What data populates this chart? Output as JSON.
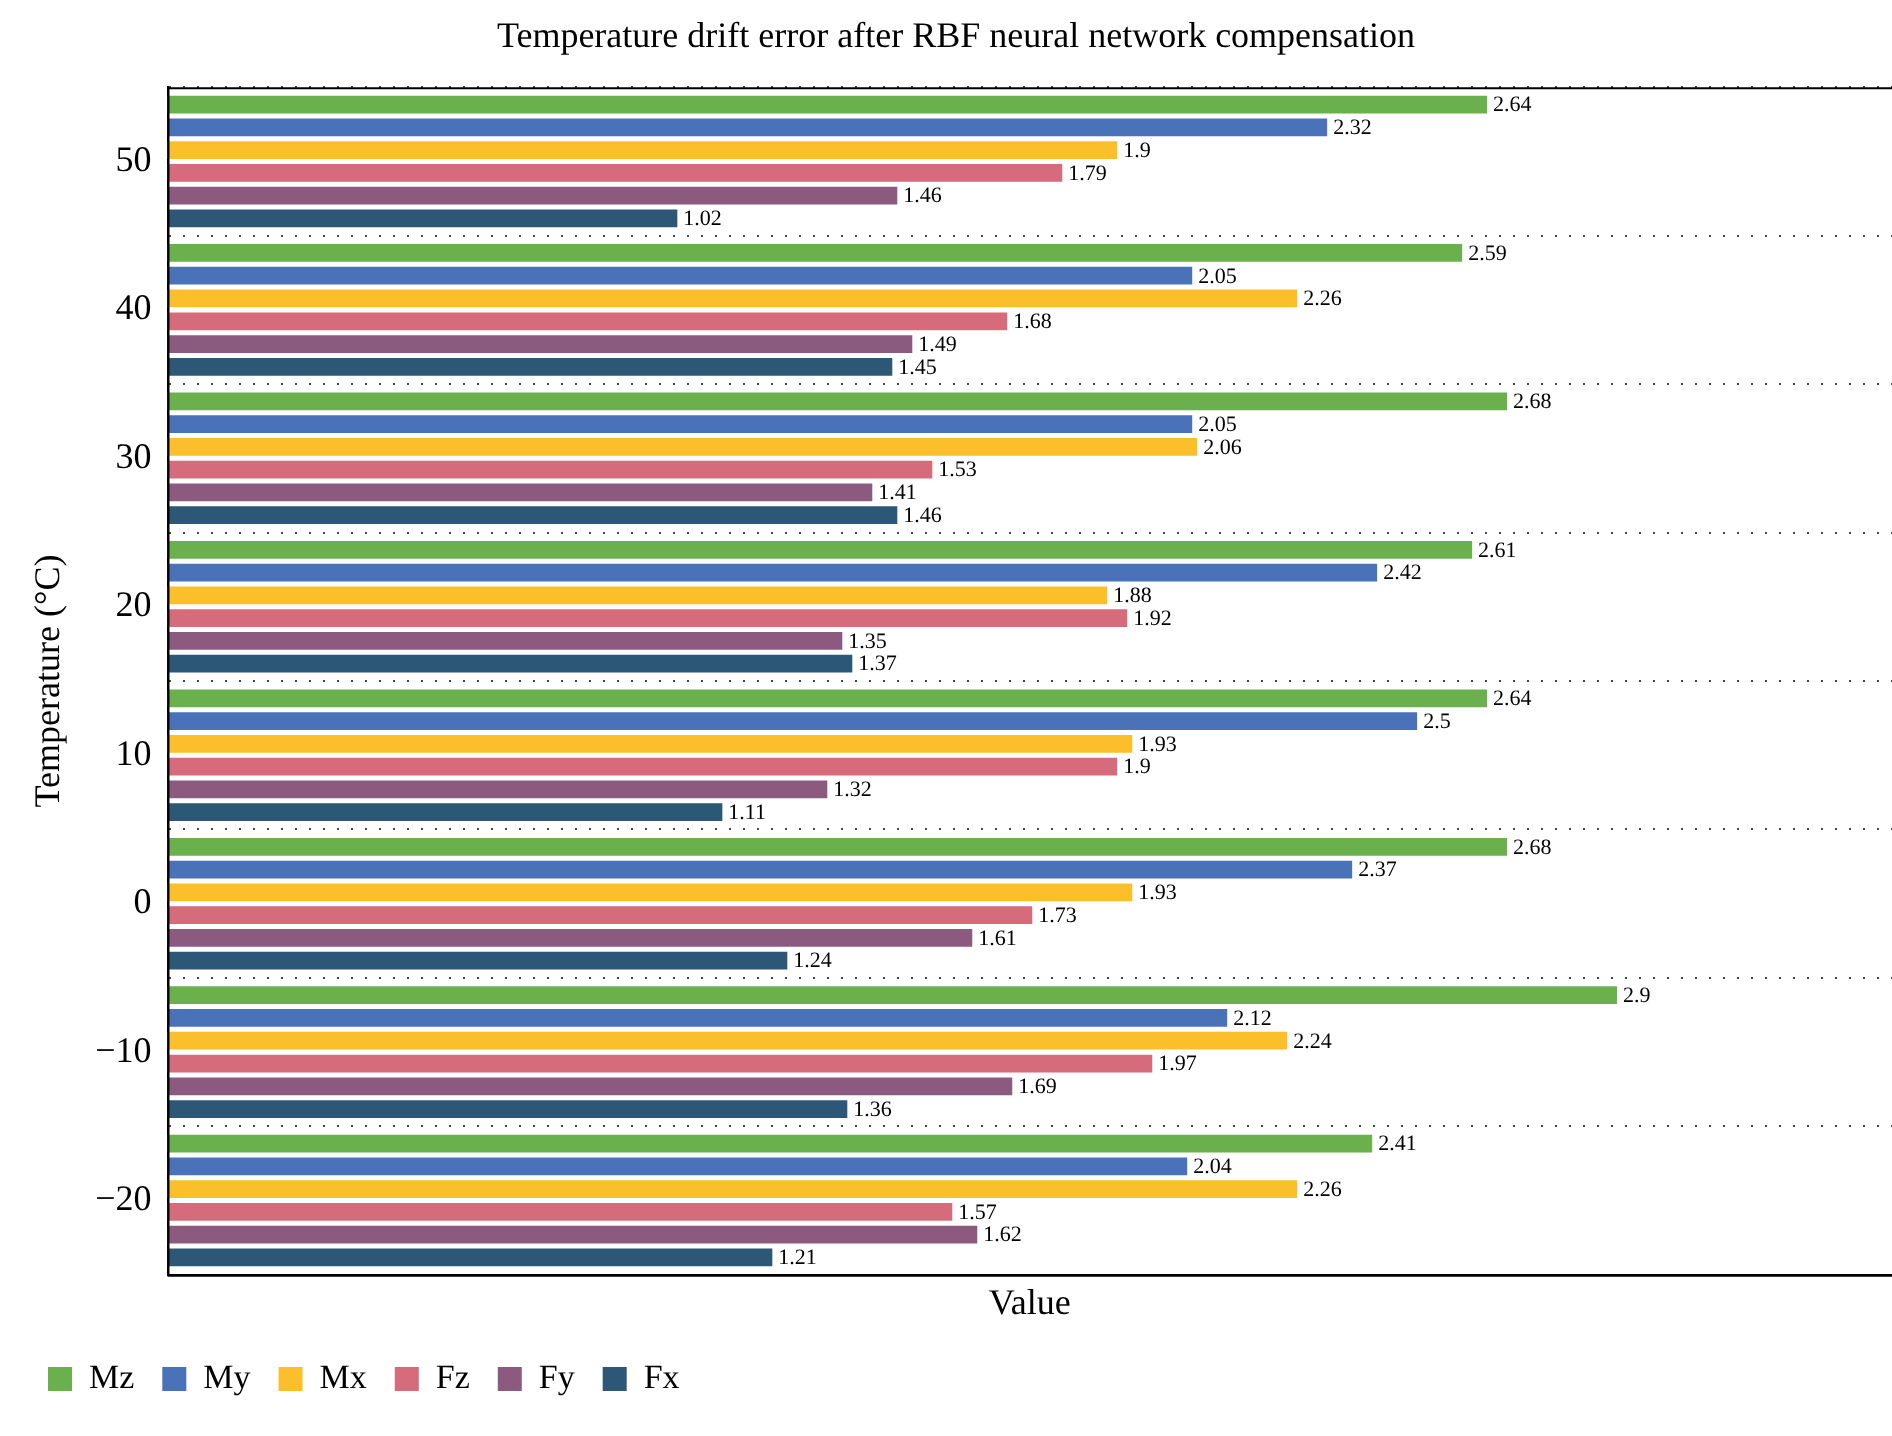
{
  "chart_data": {
    "type": "bar",
    "orientation": "horizontal",
    "title": "Temperature drift error after RBF neural network compensation",
    "xlabel": "Value",
    "ylabel": "Temperature (°C)",
    "categories": [
      "50",
      "40",
      "30",
      "20",
      "10",
      "0",
      "−10",
      "−20"
    ],
    "series": [
      {
        "name": "Mz",
        "color": "#6ab04c",
        "values": [
          2.64,
          2.59,
          2.68,
          2.61,
          2.64,
          2.68,
          2.9,
          2.41
        ]
      },
      {
        "name": "My",
        "color": "#4a72b8",
        "values": [
          2.32,
          2.05,
          2.05,
          2.42,
          2.5,
          2.37,
          2.12,
          2.04
        ]
      },
      {
        "name": "Mx",
        "color": "#fbbf2c",
        "values": [
          1.9,
          2.26,
          2.06,
          1.88,
          1.93,
          1.93,
          2.24,
          2.26
        ]
      },
      {
        "name": "Fz",
        "color": "#d66b7c",
        "values": [
          1.79,
          1.68,
          1.53,
          1.92,
          1.9,
          1.73,
          1.97,
          1.57
        ]
      },
      {
        "name": "Fy",
        "color": "#8c5a7e",
        "values": [
          1.46,
          1.49,
          1.41,
          1.35,
          1.32,
          1.61,
          1.69,
          1.62
        ]
      },
      {
        "name": "Fx",
        "color": "#2d5777",
        "values": [
          1.02,
          1.45,
          1.46,
          1.37,
          1.11,
          1.24,
          1.36,
          1.21
        ]
      }
    ],
    "xlim": [
      0,
      3.45
    ],
    "tick_labels": "y",
    "data_labels": true,
    "grid": "y",
    "legend": "bottom"
  }
}
